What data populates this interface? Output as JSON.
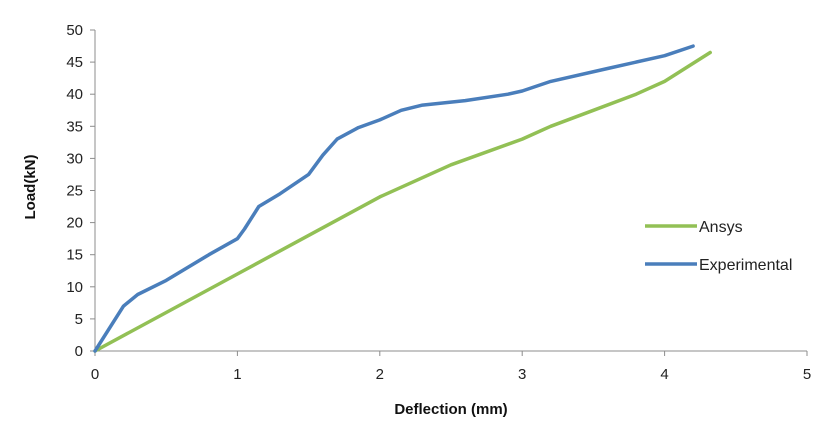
{
  "chart_data": {
    "type": "line",
    "xlabel": "Deflection (mm)",
    "ylabel": "Load(kN)",
    "xlim": [
      0,
      5
    ],
    "ylim": [
      0,
      50
    ],
    "x_ticks": [
      "0",
      "1",
      "2",
      "3",
      "4",
      "5"
    ],
    "y_ticks": [
      "0",
      "5",
      "10",
      "15",
      "20",
      "25",
      "30",
      "35",
      "40",
      "45",
      "50"
    ],
    "grid": false,
    "legend_position": "right",
    "series": [
      {
        "name": "Ansys",
        "color": "#92c055",
        "points": [
          [
            0,
            0
          ],
          [
            0.5,
            6
          ],
          [
            1,
            12
          ],
          [
            1.5,
            18
          ],
          [
            2,
            24
          ],
          [
            2.5,
            29
          ],
          [
            3,
            33
          ],
          [
            3.2,
            35
          ],
          [
            3.5,
            37.5
          ],
          [
            3.8,
            40
          ],
          [
            4,
            42
          ],
          [
            4.32,
            46.5
          ]
        ]
      },
      {
        "name": "Experimental",
        "color": "#4a7ebb",
        "points": [
          [
            0,
            0
          ],
          [
            0.2,
            7
          ],
          [
            0.3,
            8.8
          ],
          [
            0.5,
            11
          ],
          [
            0.8,
            15
          ],
          [
            1,
            17.5
          ],
          [
            1.05,
            19
          ],
          [
            1.15,
            22.5
          ],
          [
            1.3,
            24.5
          ],
          [
            1.5,
            27.5
          ],
          [
            1.6,
            30.5
          ],
          [
            1.7,
            33
          ],
          [
            1.85,
            34.8
          ],
          [
            2,
            36
          ],
          [
            2.15,
            37.5
          ],
          [
            2.3,
            38.3
          ],
          [
            2.6,
            39
          ],
          [
            2.9,
            40
          ],
          [
            3.0,
            40.5
          ],
          [
            3.2,
            42
          ],
          [
            3.6,
            44
          ],
          [
            4,
            46
          ],
          [
            4.2,
            47.5
          ]
        ]
      }
    ]
  }
}
